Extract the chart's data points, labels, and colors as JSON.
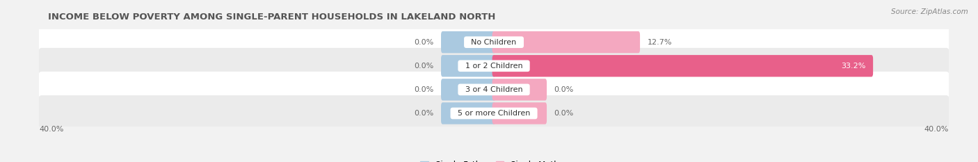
{
  "title": "INCOME BELOW POVERTY AMONG SINGLE-PARENT HOUSEHOLDS IN LAKELAND NORTH",
  "source": "Source: ZipAtlas.com",
  "categories": [
    "No Children",
    "1 or 2 Children",
    "3 or 4 Children",
    "5 or more Children"
  ],
  "single_father": [
    0.0,
    0.0,
    0.0,
    0.0
  ],
  "single_mother": [
    12.7,
    33.2,
    0.0,
    0.0
  ],
  "xlim": [
    -40,
    40
  ],
  "xtick_left": "40.0%",
  "xtick_right": "40.0%",
  "color_father": "#aac9e0",
  "color_mother_light": "#f4a8c0",
  "color_mother_dark": "#e8608a",
  "min_bar_width": 4.5,
  "bar_height": 0.62,
  "bg_color": "#f2f2f2",
  "row_colors": [
    "#ffffff",
    "#ebebeb",
    "#ffffff",
    "#ebebeb"
  ],
  "title_fontsize": 9.5,
  "source_fontsize": 7.5,
  "label_fontsize": 8,
  "cat_fontsize": 8,
  "legend_fontsize": 8.5
}
